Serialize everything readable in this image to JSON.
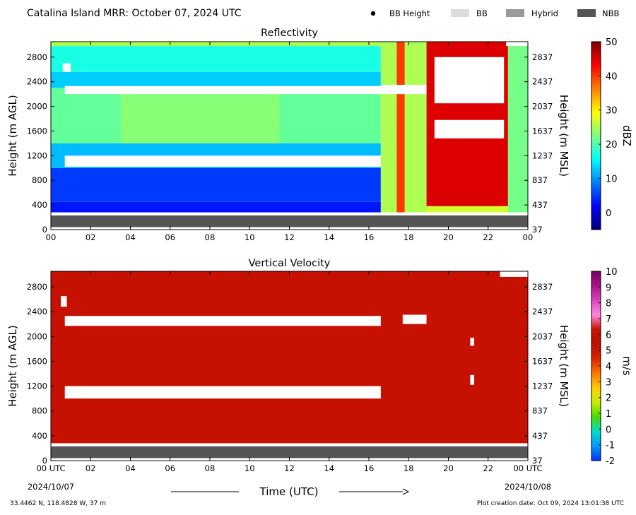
{
  "header": {
    "title": "Catalina Island MRR:  October 07, 2024 UTC",
    "legend": [
      {
        "label": "BB Height",
        "marker": "dot",
        "color": "#000000"
      },
      {
        "label": "BB",
        "marker": "box",
        "color": "#dcdcdc"
      },
      {
        "label": "Hybrid",
        "marker": "box",
        "color": "#9a9a9a"
      },
      {
        "label": "NBB",
        "marker": "box",
        "color": "#555555"
      }
    ]
  },
  "chart_data": [
    {
      "type": "heatmap",
      "title": "Reflectivity",
      "xlabel": "",
      "ylabel": "Height (m AGL)",
      "ylabel_right": "Height (m MSL)",
      "x_ticks": [
        "00",
        "02",
        "04",
        "06",
        "08",
        "10",
        "12",
        "14",
        "16",
        "18",
        "20",
        "22",
        "00"
      ],
      "y_ticks_left": [
        0,
        400,
        800,
        1200,
        1600,
        2000,
        2400,
        2800
      ],
      "y_ticks_right": [
        37,
        437,
        837,
        1237,
        1637,
        2037,
        2437,
        2837
      ],
      "xlim_hours": [
        0,
        24
      ],
      "ylim_m_agl": [
        0,
        3050
      ],
      "colorbar": {
        "label": "dBZ",
        "min": -5,
        "max": 50,
        "ticks": [
          0,
          10,
          20,
          30,
          40,
          50
        ],
        "colors": [
          "#00007f",
          "#0000ff",
          "#007fff",
          "#00ffff",
          "#7fff7f",
          "#ffff00",
          "#ff7f00",
          "#ff0000",
          "#7f0000"
        ]
      },
      "bb_class_band": {
        "from_m": 0,
        "to_m": 230,
        "class": "NBB",
        "color": "#555555"
      },
      "regions": [
        {
          "t0": 0.0,
          "t1": 16.6,
          "h0": 280,
          "h1": 450,
          "dbz": 3
        },
        {
          "t0": 0.0,
          "t1": 16.6,
          "h0": 450,
          "h1": 1000,
          "dbz": 5
        },
        {
          "t0": 0.0,
          "t1": 16.6,
          "h0": 1000,
          "h1": 1400,
          "dbz": 12
        },
        {
          "t0": 0.0,
          "t1": 16.6,
          "h0": 1400,
          "h1": 2300,
          "dbz": 21
        },
        {
          "t0": 0.0,
          "t1": 16.6,
          "h0": 2300,
          "h1": 2560,
          "dbz": 13
        },
        {
          "t0": 0.0,
          "t1": 16.6,
          "h0": 2560,
          "h1": 2980,
          "dbz": 17
        },
        {
          "t0": 0.0,
          "t1": 16.6,
          "h0": 2980,
          "h1": 3050,
          "dbz": 25
        },
        {
          "t0": 3.5,
          "t1": 11.5,
          "h0": 1400,
          "h1": 2300,
          "dbz": 23
        },
        {
          "t0": 16.6,
          "t1": 18.9,
          "h0": 280,
          "h1": 3050,
          "dbz": 25
        },
        {
          "t0": 17.4,
          "t1": 17.8,
          "h0": 280,
          "h1": 3050,
          "dbz": 40
        },
        {
          "t0": 18.9,
          "t1": 23.0,
          "h0": 280,
          "h1": 380,
          "dbz": 27
        },
        {
          "t0": 18.9,
          "t1": 23.0,
          "h0": 380,
          "h1": 3050,
          "dbz": 45
        },
        {
          "t0": 23.0,
          "t1": 24.0,
          "h0": 280,
          "h1": 3050,
          "dbz": 22
        }
      ],
      "no_data": [
        {
          "t0": 0.7,
          "t1": 16.6,
          "h0": 1020,
          "h1": 1200
        },
        {
          "t0": 0.7,
          "t1": 16.6,
          "h0": 2200,
          "h1": 2330
        },
        {
          "t0": 0.6,
          "t1": 1.0,
          "h0": 2560,
          "h1": 2700
        },
        {
          "t0": 16.6,
          "t1": 18.9,
          "h0": 2200,
          "h1": 2350
        },
        {
          "t0": 19.3,
          "t1": 22.8,
          "h0": 2050,
          "h1": 2800
        },
        {
          "t0": 19.3,
          "t1": 22.8,
          "h0": 1480,
          "h1": 1780
        },
        {
          "t0": 22.9,
          "t1": 24.0,
          "h0": 2980,
          "h1": 3050
        }
      ]
    },
    {
      "type": "heatmap",
      "title": "Vertical Velocity",
      "xlabel": "Time (UTC)",
      "ylabel": "Height (m AGL)",
      "ylabel_right": "Height (m MSL)",
      "x_ticks": [
        "00 UTC",
        "02",
        "04",
        "06",
        "08",
        "10",
        "12",
        "14",
        "16",
        "18",
        "20",
        "22",
        "00 UTC"
      ],
      "x_dates": [
        "2024/10/07",
        "2024/10/08"
      ],
      "y_ticks_left": [
        0,
        400,
        800,
        1200,
        1600,
        2000,
        2400,
        2800
      ],
      "y_ticks_right": [
        37,
        437,
        837,
        1237,
        1637,
        2037,
        2437,
        2837
      ],
      "xlim_hours": [
        0,
        24
      ],
      "ylim_m_agl": [
        0,
        3050
      ],
      "colorbar": {
        "label": "m/s",
        "min": -2,
        "max": 10,
        "ticks": [
          -2,
          -1,
          0,
          1,
          2,
          3,
          4,
          5,
          6,
          7,
          8,
          9,
          10
        ],
        "colors": [
          "#0033ff",
          "#0099ff",
          "#00ddcc",
          "#44dd00",
          "#ccee00",
          "#ffcc00",
          "#ff7700",
          "#dd2200",
          "#bb1100",
          "#cc1100",
          "#ff88dd",
          "#dd44bb",
          "#aa1188",
          "#770066"
        ]
      },
      "bb_class_band": {
        "from_m": 0,
        "to_m": 230,
        "class": "NBB",
        "color": "#555555"
      },
      "fill_value_mps": 6,
      "no_data": [
        {
          "t0": 0.7,
          "t1": 16.6,
          "h0": 1000,
          "h1": 1200
        },
        {
          "t0": 0.7,
          "t1": 16.6,
          "h0": 2170,
          "h1": 2330
        },
        {
          "t0": 17.7,
          "t1": 18.9,
          "h0": 2200,
          "h1": 2350
        },
        {
          "t0": 21.1,
          "t1": 21.3,
          "h0": 1850,
          "h1": 1980
        },
        {
          "t0": 21.1,
          "t1": 21.3,
          "h0": 1220,
          "h1": 1380
        },
        {
          "t0": 0.5,
          "t1": 0.8,
          "h0": 2480,
          "h1": 2650
        },
        {
          "t0": 22.6,
          "t1": 24.0,
          "h0": 2960,
          "h1": 3050
        }
      ]
    }
  ],
  "footer": {
    "location": "33.4462 N, 118.4828 W, 37 m",
    "creation": "Plot creation date: Oct 09, 2024 13:01:38 UTC"
  }
}
